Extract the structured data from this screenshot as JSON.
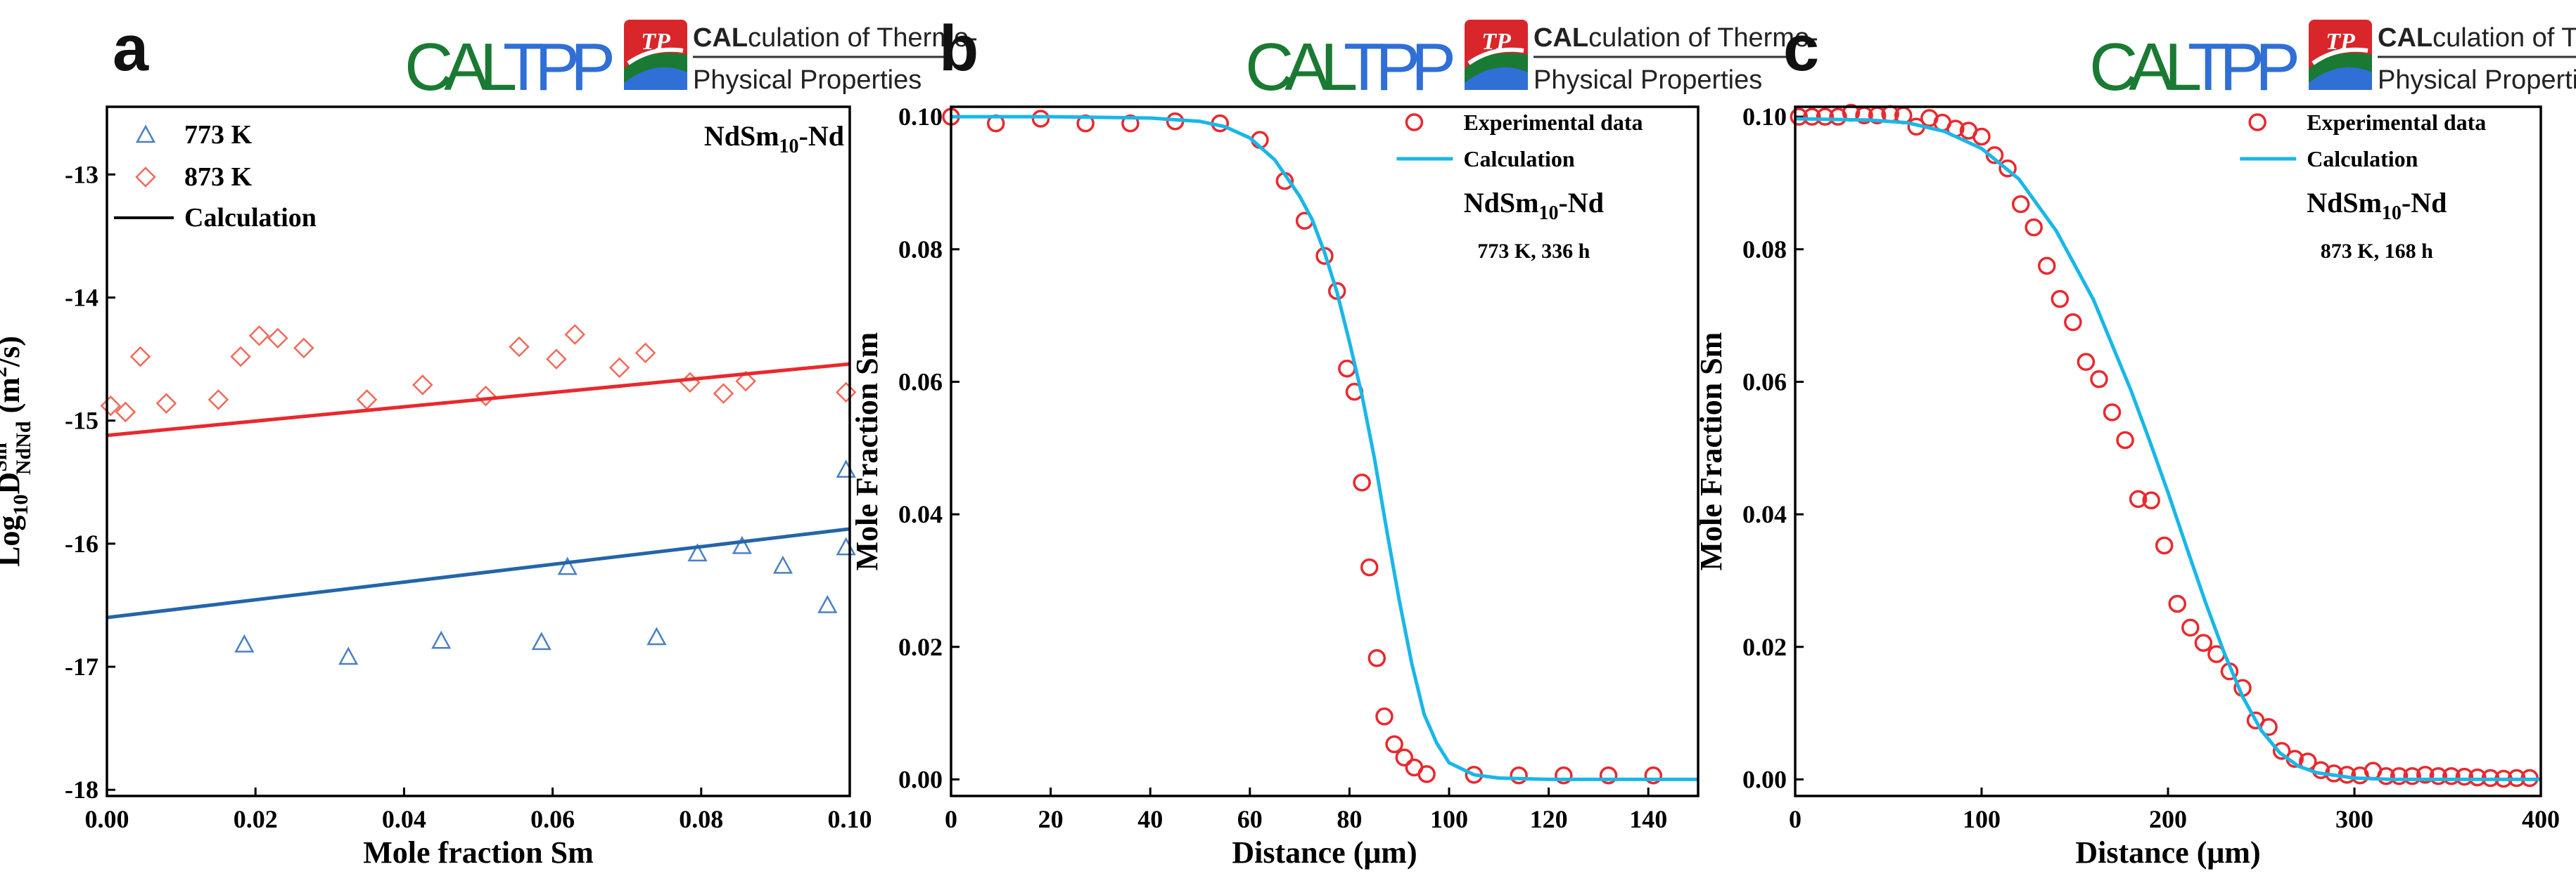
{
  "logo": {
    "brand_a": "CAL",
    "brand_b": "TPP",
    "badge": "TP",
    "line1_strong": "CAL",
    "line1_rest": "culation of Thermo-",
    "line2": "Physical Properties",
    "colors": {
      "green": "#1a7a33",
      "blue": "#2f6fd6",
      "red": "#d8262b"
    }
  },
  "chart_data": [
    {
      "panel": "a",
      "type": "scatter",
      "annotation": {
        "main": "NdSm",
        "sub": "10",
        "tail": "-Nd"
      },
      "xlabel": "Mole fraction Sm",
      "ylabel": {
        "pre": "Log",
        "pre_sub": "10",
        "d": "D",
        "d_sup": "Sm",
        "d_sub": "NdNd",
        "units": " (m",
        "units_sup": "2",
        "units_end": "/s)"
      },
      "xlim": [
        0,
        0.1
      ],
      "ylim": [
        -18.05,
        -12.45
      ],
      "xticks": [
        0.0,
        0.02,
        0.04,
        0.06,
        0.08,
        0.1
      ],
      "xtick_labels": [
        "0.00",
        "0.02",
        "0.04",
        "0.06",
        "0.08",
        "0.10"
      ],
      "yticks": [
        -18,
        -17,
        -16,
        -15,
        -14,
        -13
      ],
      "ytick_labels": [
        "-18",
        "-17",
        "-16",
        "-15",
        "-14",
        "-13"
      ],
      "legend": [
        "773 K",
        "873 K",
        "Calculation"
      ],
      "series": [
        {
          "name": "773 K",
          "marker": "triangle",
          "color": "#4a80c4",
          "x": [
            0.0185,
            0.0325,
            0.045,
            0.0585,
            0.062,
            0.074,
            0.0795,
            0.0855,
            0.091,
            0.097,
            0.0995,
            0.0995
          ],
          "y": [
            -16.82,
            -16.92,
            -16.79,
            -16.8,
            -16.19,
            -16.76,
            -16.08,
            -16.02,
            -16.18,
            -16.5,
            -16.03,
            -15.4
          ]
        },
        {
          "name": "873 K",
          "marker": "diamond",
          "color": "#f06a5a",
          "x": [
            0.0005,
            0.0025,
            0.0045,
            0.008,
            0.015,
            0.018,
            0.0205,
            0.023,
            0.0265,
            0.035,
            0.0425,
            0.051,
            0.0555,
            0.0605,
            0.063,
            0.069,
            0.0725,
            0.0785,
            0.083,
            0.086,
            0.0995
          ],
          "y": [
            -14.88,
            -14.93,
            -14.48,
            -14.86,
            -14.83,
            -14.48,
            -14.31,
            -14.33,
            -14.41,
            -14.83,
            -14.71,
            -14.8,
            -14.4,
            -14.5,
            -14.3,
            -14.57,
            -14.45,
            -14.69,
            -14.78,
            -14.68,
            -14.77
          ]
        },
        {
          "name": "Calculation 873 K",
          "type": "line",
          "color": "#e8292e",
          "x": [
            0,
            0.1
          ],
          "y": [
            -15.12,
            -14.54
          ]
        },
        {
          "name": "Calculation 773 K",
          "type": "line",
          "color": "#2465a8",
          "x": [
            0,
            0.1
          ],
          "y": [
            -16.6,
            -15.88
          ]
        }
      ]
    },
    {
      "panel": "b",
      "type": "scatter",
      "annotation": {
        "main": "NdSm",
        "sub": "10",
        "tail": "-Nd",
        "condition": "773 K, 336 h"
      },
      "xlabel": "Distance (μm)",
      "ylabel": "Mole Fraction Sm",
      "xlim": [
        0,
        150
      ],
      "ylim": [
        -0.0025,
        0.1015
      ],
      "xticks": [
        0,
        20,
        40,
        60,
        80,
        100,
        120,
        140
      ],
      "xtick_labels": [
        "0",
        "20",
        "40",
        "60",
        "80",
        "100",
        "120",
        "140"
      ],
      "yticks": [
        0,
        0.02,
        0.04,
        0.06,
        0.08,
        0.1
      ],
      "ytick_labels": [
        "0.00",
        "0.02",
        "0.04",
        "0.06",
        "0.08",
        "0.10"
      ],
      "legend": [
        "Experimental data",
        "Calculation"
      ],
      "series": [
        {
          "name": "Experimental data",
          "marker": "circle",
          "color": "#e8292e",
          "x": [
            0,
            9,
            18,
            27,
            36,
            45,
            54,
            62,
            67,
            71,
            75,
            77.5,
            79.5,
            81,
            82.5,
            84,
            85.5,
            87,
            89,
            91,
            93,
            95.5,
            105,
            114,
            123,
            132,
            141
          ],
          "y": [
            0.1,
            0.099,
            0.0997,
            0.099,
            0.099,
            0.0993,
            0.099,
            0.0965,
            0.0903,
            0.0843,
            0.079,
            0.0737,
            0.062,
            0.0585,
            0.0448,
            0.032,
            0.0183,
            0.0095,
            0.0053,
            0.0033,
            0.0018,
            0.0008,
            0.0007,
            0.0006,
            0.0006,
            0.0006,
            0.0006
          ]
        },
        {
          "name": "Calculation",
          "type": "line",
          "color": "#19b7e8",
          "x": [
            0,
            20,
            40,
            50,
            55,
            60,
            65,
            70,
            72.5,
            75,
            77.5,
            80,
            82.5,
            85,
            87.5,
            90,
            92.5,
            95,
            97.5,
            100,
            105,
            110,
            120,
            150
          ],
          "y": [
            0.1,
            0.1,
            0.0998,
            0.0993,
            0.0985,
            0.0968,
            0.0935,
            0.088,
            0.0845,
            0.0795,
            0.0735,
            0.066,
            0.058,
            0.0485,
            0.0375,
            0.027,
            0.0175,
            0.0098,
            0.0055,
            0.0025,
            0.0007,
            0.0002,
            0,
            0
          ]
        }
      ]
    },
    {
      "panel": "c",
      "type": "scatter",
      "annotation": {
        "main": "NdSm",
        "sub": "10",
        "tail": "-Nd",
        "condition": "873 K, 168 h"
      },
      "xlabel": "Distance (μm)",
      "ylabel": "Mole Fraction Sm",
      "xlim": [
        0,
        400
      ],
      "ylim": [
        -0.0025,
        0.1015
      ],
      "xticks": [
        0,
        100,
        200,
        300,
        400
      ],
      "xtick_labels": [
        "0",
        "100",
        "200",
        "300",
        "400"
      ],
      "yticks": [
        0,
        0.02,
        0.04,
        0.06,
        0.08,
        0.1
      ],
      "ytick_labels": [
        "0.00",
        "0.02",
        "0.04",
        "0.06",
        "0.08",
        "0.10"
      ],
      "legend": [
        "Experimental data",
        "Calculation"
      ],
      "series": [
        {
          "name": "Experimental data",
          "marker": "circle",
          "color": "#e8292e",
          "x": [
            2,
            9,
            16,
            23,
            30,
            37,
            44,
            51,
            58,
            65,
            72,
            79,
            86,
            93,
            100,
            107,
            114,
            121,
            128,
            135,
            142,
            149,
            156,
            163,
            170,
            177,
            184,
            191,
            198,
            205,
            212,
            219,
            226,
            233,
            240,
            247,
            254,
            261,
            268,
            275,
            282,
            289,
            296,
            303,
            310,
            317,
            324,
            331,
            338,
            345,
            352,
            359,
            366,
            373,
            380,
            387,
            394
          ],
          "y": [
            0.1,
            0.1,
            0.1,
            0.1,
            0.1006,
            0.1002,
            0.1002,
            0.1004,
            0.1002,
            0.0985,
            0.0998,
            0.0991,
            0.0982,
            0.0979,
            0.097,
            0.0942,
            0.0922,
            0.0868,
            0.0833,
            0.0775,
            0.0725,
            0.069,
            0.063,
            0.0604,
            0.0554,
            0.0512,
            0.0423,
            0.0421,
            0.0353,
            0.0265,
            0.0229,
            0.0206,
            0.0189,
            0.0163,
            0.0138,
            0.0089,
            0.0079,
            0.0043,
            0.0031,
            0.0027,
            0.0014,
            0.0009,
            0.0007,
            0.0006,
            0.0013,
            0.0005,
            0.0005,
            0.0005,
            0.0007,
            0.0005,
            0.0005,
            0.0004,
            0.0003,
            0.0002,
            0.0001,
            0.0002,
            0.0002
          ]
        },
        {
          "name": "Calculation",
          "type": "line",
          "color": "#19b7e8",
          "x": [
            0,
            40,
            60,
            80,
            100,
            120,
            140,
            160,
            180,
            190,
            200,
            210,
            220,
            230,
            240,
            250,
            260,
            270,
            280,
            300,
            320,
            360,
            400
          ],
          "y": [
            0.0997,
            0.0995,
            0.0991,
            0.0978,
            0.0952,
            0.0906,
            0.0828,
            0.0724,
            0.0588,
            0.0512,
            0.0433,
            0.035,
            0.0268,
            0.0192,
            0.0125,
            0.0074,
            0.004,
            0.002,
            0.001,
            0.0002,
            0,
            0,
            0
          ]
        }
      ]
    }
  ],
  "panel_letters": [
    "a",
    "b",
    "c"
  ]
}
